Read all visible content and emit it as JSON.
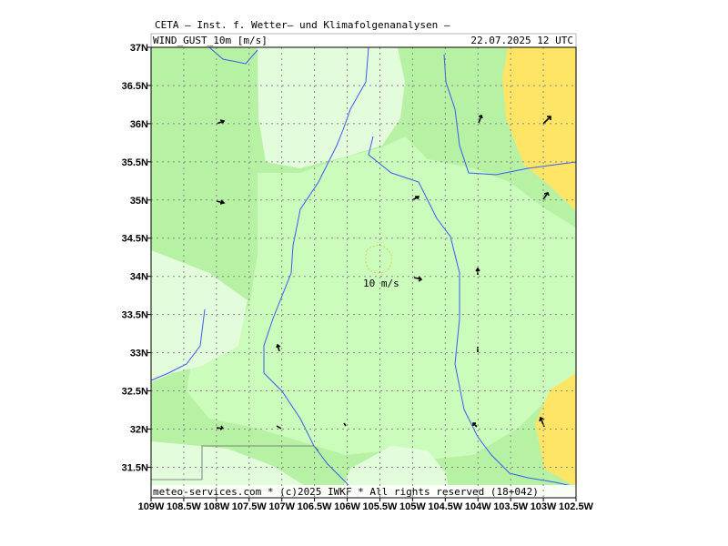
{
  "map": {
    "header": "CETA – Inst. f. Wetter– und Klimafolgenanalysen –",
    "parameter": "WIND_GUST_10m [m/s]",
    "valid_time": "22.07.2025 12 UTC",
    "annotation": "10 m/s",
    "footer": "meteo-services.com * (c)2025 IWKF * All rights reserved (18+042)",
    "xlim": [
      -109,
      -102.5
    ],
    "ylim": [
      31.1,
      37
    ],
    "xticks": [
      {
        "value": -109,
        "label": "109W"
      },
      {
        "value": -108.5,
        "label": "108.5W"
      },
      {
        "value": -108,
        "label": "108W"
      },
      {
        "value": -107.5,
        "label": "107.5W"
      },
      {
        "value": -107,
        "label": "107W"
      },
      {
        "value": -106.5,
        "label": "106.5W"
      },
      {
        "value": -106,
        "label": "106W"
      },
      {
        "value": -105.5,
        "label": "105.5W"
      },
      {
        "value": -105,
        "label": "105W"
      },
      {
        "value": -104.5,
        "label": "104.5W"
      },
      {
        "value": -104,
        "label": "104W"
      },
      {
        "value": -103.5,
        "label": "103.5W"
      },
      {
        "value": -103,
        "label": "103W"
      },
      {
        "value": -102.5,
        "label": "102.5W"
      }
    ],
    "yticks": [
      {
        "value": 37,
        "label": "37N"
      },
      {
        "value": 36.5,
        "label": "36.5N"
      },
      {
        "value": 36,
        "label": "36N"
      },
      {
        "value": 35.5,
        "label": "35.5N"
      },
      {
        "value": 35,
        "label": "35N"
      },
      {
        "value": 34.5,
        "label": "34.5N"
      },
      {
        "value": 34,
        "label": "34N"
      },
      {
        "value": 33.5,
        "label": "33.5N"
      },
      {
        "value": 33,
        "label": "33N"
      },
      {
        "value": 32.5,
        "label": "32.5N"
      },
      {
        "value": 32,
        "label": "32N"
      },
      {
        "value": 31.5,
        "label": "31.5N"
      }
    ],
    "grid": true
  }
}
